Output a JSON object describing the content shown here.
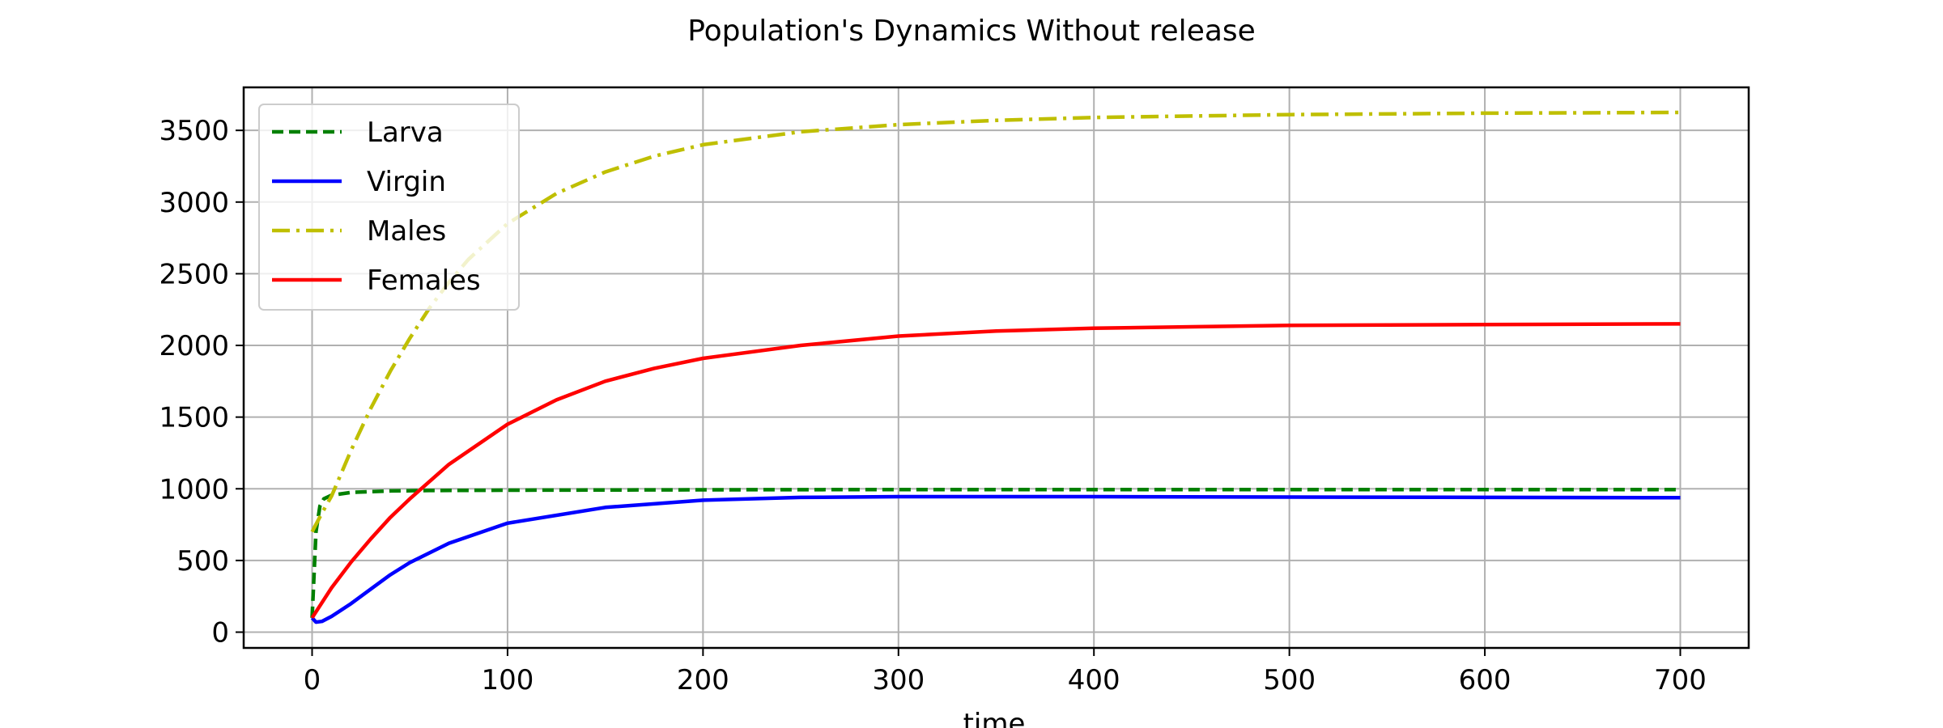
{
  "chart_data": {
    "type": "line",
    "title": "Population's Dynamics Without release",
    "xlabel": "time",
    "ylabel": "",
    "xlim": [
      -35,
      735
    ],
    "ylim": [
      -110,
      3800
    ],
    "xticks": [
      0,
      100,
      200,
      300,
      400,
      500,
      600,
      700
    ],
    "yticks": [
      0,
      500,
      1000,
      1500,
      2000,
      2500,
      3000,
      3500
    ],
    "grid": true,
    "legend_position": "upper-left",
    "series": [
      {
        "name": "Larva",
        "color": "#008000",
        "style": "dashed",
        "points": [
          [
            0,
            100
          ],
          [
            2,
            700
          ],
          [
            4,
            880
          ],
          [
            6,
            930
          ],
          [
            10,
            955
          ],
          [
            20,
            975
          ],
          [
            40,
            985
          ],
          [
            60,
            988
          ],
          [
            100,
            990
          ],
          [
            200,
            993
          ],
          [
            300,
            995
          ],
          [
            400,
            995
          ],
          [
            500,
            995
          ],
          [
            600,
            995
          ],
          [
            700,
            995
          ]
        ]
      },
      {
        "name": "Virgin",
        "color": "#0000ff",
        "style": "solid",
        "points": [
          [
            0,
            100
          ],
          [
            2,
            70
          ],
          [
            5,
            75
          ],
          [
            10,
            110
          ],
          [
            20,
            200
          ],
          [
            30,
            300
          ],
          [
            40,
            400
          ],
          [
            50,
            485
          ],
          [
            70,
            620
          ],
          [
            100,
            760
          ],
          [
            150,
            870
          ],
          [
            200,
            920
          ],
          [
            250,
            940
          ],
          [
            300,
            945
          ],
          [
            400,
            945
          ],
          [
            500,
            942
          ],
          [
            600,
            940
          ],
          [
            700,
            938
          ]
        ]
      },
      {
        "name": "Males",
        "color": "#bfbf00",
        "style": "dashdot",
        "points": [
          [
            0,
            700
          ],
          [
            5,
            830
          ],
          [
            10,
            950
          ],
          [
            20,
            1270
          ],
          [
            30,
            1560
          ],
          [
            40,
            1820
          ],
          [
            50,
            2050
          ],
          [
            60,
            2260
          ],
          [
            70,
            2440
          ],
          [
            80,
            2600
          ],
          [
            100,
            2850
          ],
          [
            125,
            3060
          ],
          [
            150,
            3210
          ],
          [
            175,
            3320
          ],
          [
            200,
            3400
          ],
          [
            250,
            3490
          ],
          [
            300,
            3540
          ],
          [
            350,
            3570
          ],
          [
            400,
            3590
          ],
          [
            500,
            3610
          ],
          [
            600,
            3620
          ],
          [
            700,
            3625
          ]
        ]
      },
      {
        "name": "Females",
        "color": "#ff0000",
        "style": "solid",
        "points": [
          [
            0,
            100
          ],
          [
            10,
            310
          ],
          [
            20,
            490
          ],
          [
            30,
            650
          ],
          [
            40,
            800
          ],
          [
            50,
            930
          ],
          [
            70,
            1170
          ],
          [
            100,
            1450
          ],
          [
            125,
            1620
          ],
          [
            150,
            1750
          ],
          [
            175,
            1840
          ],
          [
            200,
            1910
          ],
          [
            250,
            2000
          ],
          [
            300,
            2065
          ],
          [
            350,
            2100
          ],
          [
            400,
            2120
          ],
          [
            450,
            2130
          ],
          [
            500,
            2140
          ],
          [
            600,
            2145
          ],
          [
            700,
            2150
          ]
        ]
      }
    ]
  }
}
